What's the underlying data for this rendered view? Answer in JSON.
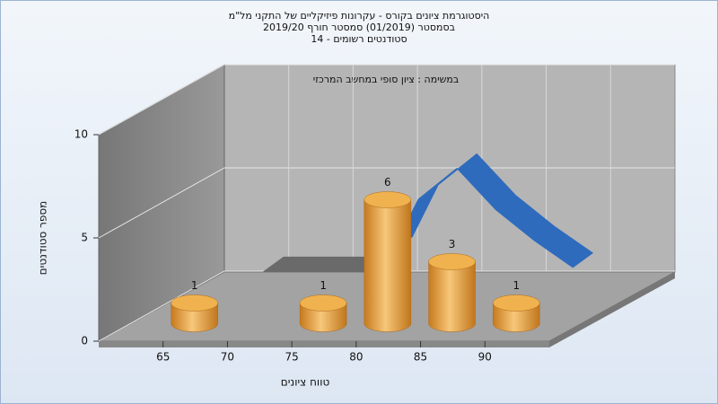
{
  "chart_data": {
    "type": "bar3d",
    "title": [
      "היסטוגרמת ציונים בקורס - עקרונות פיזיקליים של התקני מל\"מ",
      "בסמסטר  (01/2019)  סמסטר חורף 2019/20",
      "סטודנטים רשומים - 14"
    ],
    "annotation": "במשימה : ציון סופי במחשב המרכזי",
    "xlabel": "טווח ציונים",
    "ylabel": "מספר סטודנטים",
    "x": [
      65,
      70,
      75,
      80,
      85,
      90
    ],
    "values": [
      1,
      null,
      1,
      6,
      3,
      1
    ],
    "color": "#e8a33c",
    "ribbons": [
      {
        "color": "#6a6a6a",
        "x": [
          66,
          70,
          75
        ],
        "values": [
          1,
          1,
          1
        ]
      },
      {
        "color": "#2f6bbd",
        "x": [
          76,
          78,
          81,
          84,
          87,
          90
        ],
        "values": [
          2,
          4.5,
          6,
          4,
          2.5,
          1.2
        ]
      }
    ],
    "xlim": [
      60,
      95
    ],
    "xticks": [
      65,
      70,
      75,
      80,
      85,
      90
    ],
    "ylim": [
      0,
      10
    ],
    "yticks": [
      0,
      5,
      10
    ],
    "grid": true
  }
}
